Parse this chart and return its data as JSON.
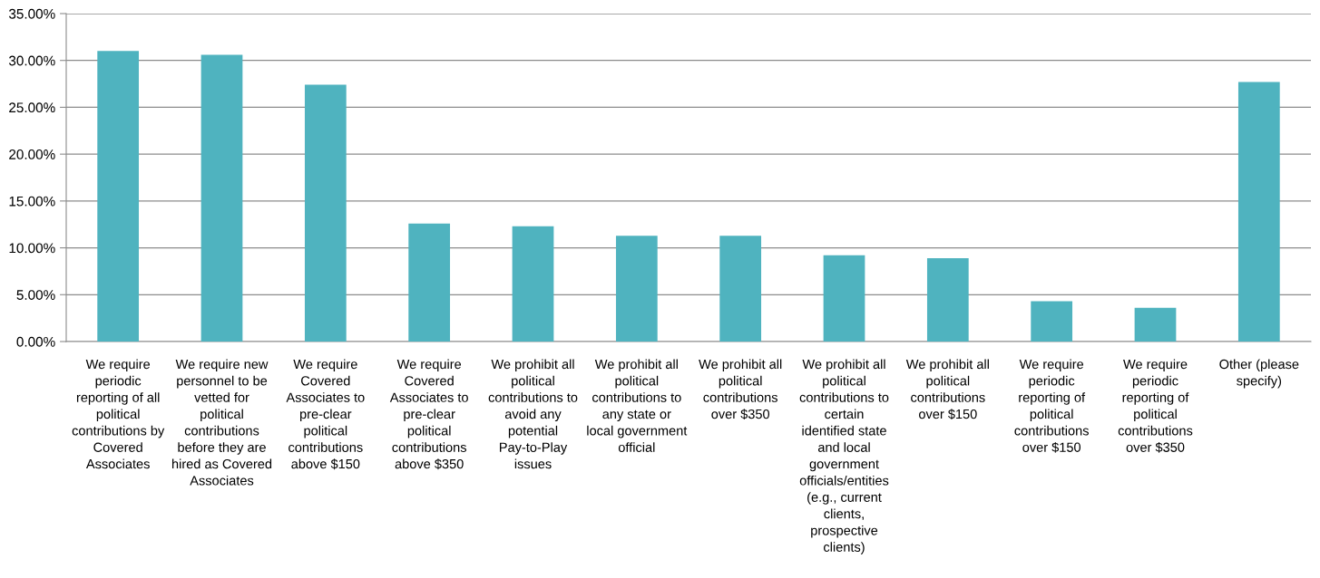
{
  "chart_data": {
    "type": "bar",
    "categories": [
      "We require periodic reporting of all political contributions by Covered Associates",
      "We require new personnel to be vetted for political contributions before they are hired as Covered Associates",
      "We require Covered Associates to pre-clear political contributions above $150",
      "We require Covered Associates to pre-clear political contributions above $350",
      "We prohibit all political contributions to avoid any potential Pay-to-Play issues",
      "We prohibit all political contributions to any state or local government official",
      "We prohibit all political contributions over $350",
      "We prohibit all political contributions to certain identified state and local government officials/entities (e.g., current clients, prospective clients)",
      "We prohibit all political contributions over $150",
      "We require periodic reporting of political contributions over $150",
      "We require periodic reporting of political contributions over $350",
      "Other (please specify)"
    ],
    "values": [
      31.0,
      30.6,
      27.4,
      12.6,
      12.3,
      11.3,
      11.3,
      9.2,
      8.9,
      4.3,
      3.6,
      27.7
    ],
    "color": "#4fb3bf",
    "ylim": [
      0,
      35
    ],
    "yticks": [
      {
        "value": 0,
        "label": "0.00%"
      },
      {
        "value": 5,
        "label": "5.00%"
      },
      {
        "value": 10,
        "label": "10.00%"
      },
      {
        "value": 15,
        "label": "15.00%"
      },
      {
        "value": 20,
        "label": "20.00%"
      },
      {
        "value": 25,
        "label": "25.00%"
      },
      {
        "value": 30,
        "label": "30.00%"
      },
      {
        "value": 35,
        "label": "35.00%"
      }
    ],
    "grid": "y"
  }
}
